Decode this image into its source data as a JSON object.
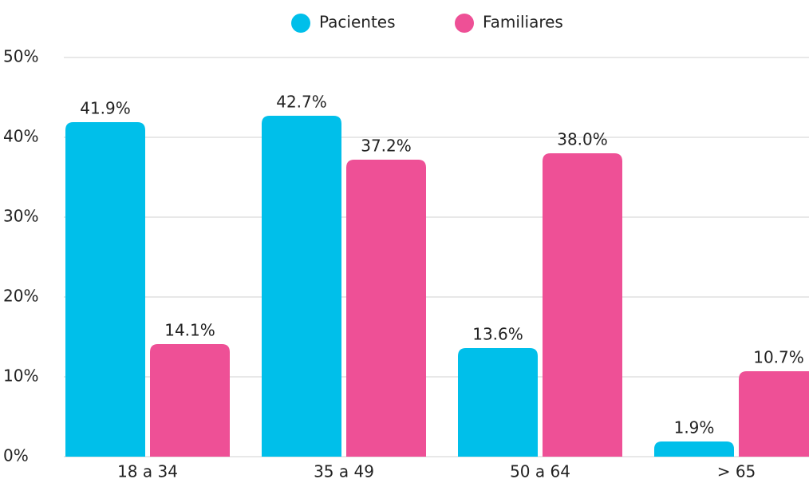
{
  "chart_data": {
    "type": "bar",
    "categories": [
      "18 a 34",
      "35 a 49",
      "50 a 64",
      "> 65"
    ],
    "series": [
      {
        "name": "Pacientes",
        "color": "#00bfea",
        "values": [
          41.9,
          42.7,
          13.6,
          1.9
        ],
        "value_labels": [
          "41.9%",
          "42.7%",
          "13.6%",
          "1.9%"
        ]
      },
      {
        "name": "Familiares",
        "color": "#ee5096",
        "values": [
          14.1,
          37.2,
          38.0,
          10.7
        ],
        "value_labels": [
          "14.1%",
          "37.2%",
          "38.0%",
          "10.7%"
        ]
      }
    ],
    "ylim": [
      0,
      50
    ],
    "yticks": [
      {
        "value": 0,
        "label": "0%"
      },
      {
        "value": 10,
        "label": "10%"
      },
      {
        "value": 20,
        "label": "20%"
      },
      {
        "value": 30,
        "label": "30%"
      },
      {
        "value": 40,
        "label": "40%"
      },
      {
        "value": 50,
        "label": "50%"
      }
    ],
    "grid": true,
    "legend": "top"
  }
}
